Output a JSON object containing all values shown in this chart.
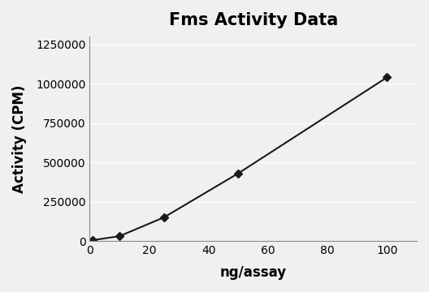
{
  "title": "Fms Activity Data",
  "xlabel": "ng/assay",
  "ylabel": "Activity (CPM)",
  "x_data": [
    1,
    10,
    25,
    50,
    100
  ],
  "y_data": [
    5000,
    30000,
    150000,
    430000,
    1040000
  ],
  "xlim": [
    0,
    110
  ],
  "ylim": [
    0,
    1300000
  ],
  "xticks": [
    0,
    20,
    40,
    60,
    80,
    100
  ],
  "yticks": [
    0,
    250000,
    500000,
    750000,
    1000000,
    1250000
  ],
  "line_color": "#1a1a1a",
  "marker": "D",
  "marker_size": 5,
  "marker_color": "#1a1a1a",
  "line_width": 1.5,
  "title_fontsize": 15,
  "label_fontsize": 12,
  "tick_fontsize": 10,
  "background_color": "#f0f0f0",
  "plot_bg_color": "#f0f0f0",
  "grid_color": "#ffffff",
  "grid_linewidth": 1.0,
  "figure_bg": "#f0f0f0"
}
